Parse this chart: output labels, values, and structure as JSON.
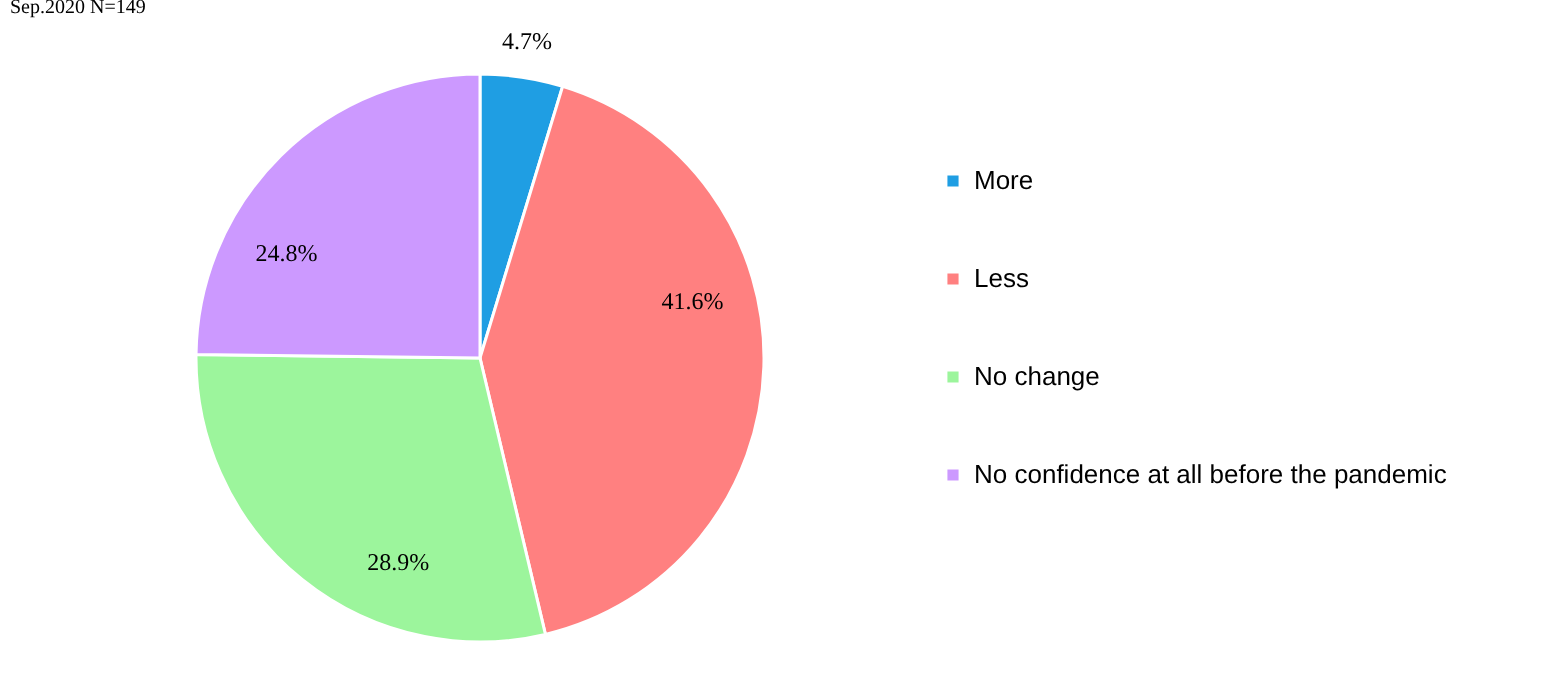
{
  "chart_data": {
    "type": "pie",
    "title": "Sep.2020 N=149",
    "categories": [
      "More",
      "Less",
      "No change",
      "No confidence at all before the pandemic"
    ],
    "values": [
      4.7,
      41.6,
      28.9,
      24.8
    ],
    "colors": [
      "#1f9ee3",
      "#ff8080",
      "#9cf59c",
      "#cc99ff"
    ],
    "value_labels": [
      "4.7%",
      "41.6%",
      "28.9%",
      "24.8%"
    ],
    "legend": "right"
  }
}
